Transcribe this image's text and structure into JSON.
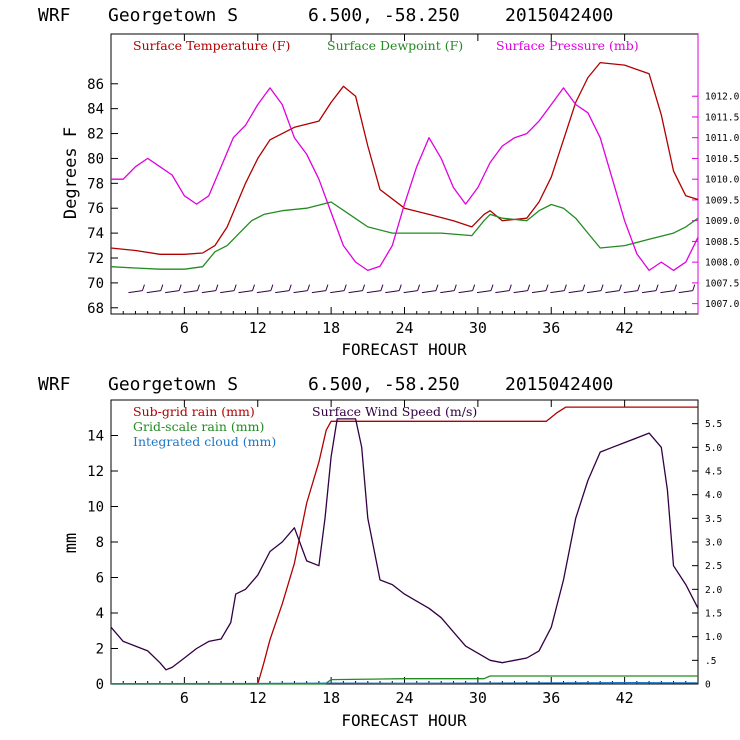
{
  "chart_data": [
    {
      "type": "line",
      "header": {
        "model": "WRF",
        "location": "Georgetown S",
        "coords": "6.500, -58.250",
        "init": "2015042400"
      },
      "xlabel": "FORECAST HOUR",
      "ylabel": "Degrees F",
      "xlim": [
        0,
        48
      ],
      "x_ticks": [
        6,
        12,
        18,
        24,
        30,
        36,
        42
      ],
      "ylim_left": [
        67.5,
        90
      ],
      "y_ticks_left": [
        68,
        70,
        72,
        74,
        76,
        78,
        80,
        82,
        84,
        86
      ],
      "ylim_right": [
        1006.75,
        1013.5
      ],
      "y_ticks_right": [
        "1007.0",
        "1007.5",
        "1008.0",
        "1008.5",
        "1009.0",
        "1009.5",
        "1010.0",
        "1010.5",
        "1011.0",
        "1011.5",
        "1012.0"
      ],
      "legend": [
        {
          "label": "Surface Temperature (F)",
          "color": "#b00000"
        },
        {
          "label": "Surface Dewpoint (F)",
          "color": "#228b22"
        },
        {
          "label": "Surface Pressure (mb)",
          "color": "#e000e0"
        }
      ],
      "series": [
        {
          "name": "Surface Temperature",
          "axis": "left",
          "color": "#b00000",
          "x": [
            0,
            2,
            4,
            6,
            7.5,
            8.5,
            9.5,
            11,
            12,
            13,
            15,
            17,
            18,
            19,
            20,
            21,
            22,
            24,
            26,
            28,
            29.5,
            30.5,
            31,
            32,
            34,
            35,
            36,
            37,
            38,
            39,
            40,
            42,
            44,
            45,
            46,
            47,
            48
          ],
          "y": [
            72.8,
            72.6,
            72.3,
            72.3,
            72.4,
            73.0,
            74.5,
            78.0,
            80.0,
            81.5,
            82.5,
            83.0,
            84.5,
            85.8,
            85.0,
            81.0,
            77.5,
            76.0,
            75.5,
            75.0,
            74.5,
            75.5,
            75.8,
            75.0,
            75.2,
            76.5,
            78.5,
            81.5,
            84.5,
            86.5,
            87.7,
            87.5,
            86.8,
            83.5,
            79.0,
            77.0,
            76.7
          ]
        },
        {
          "name": "Surface Dewpoint",
          "axis": "left",
          "color": "#228b22",
          "x": [
            0,
            2,
            4,
            6,
            7.5,
            8.5,
            9.5,
            10.5,
            11.5,
            12.5,
            14,
            16,
            18,
            19.5,
            21,
            23,
            25,
            27,
            29.5,
            30.5,
            31,
            32,
            34,
            35,
            36,
            37,
            38,
            39,
            40,
            42,
            44,
            46,
            47,
            48
          ],
          "y": [
            71.3,
            71.2,
            71.1,
            71.1,
            71.3,
            72.5,
            73.0,
            74.0,
            75.0,
            75.5,
            75.8,
            76.0,
            76.5,
            75.5,
            74.5,
            74.0,
            74.0,
            74.0,
            73.8,
            75.0,
            75.5,
            75.2,
            75.0,
            75.8,
            76.3,
            76.0,
            75.2,
            74.0,
            72.8,
            73.0,
            73.5,
            74.0,
            74.5,
            75.2
          ]
        },
        {
          "name": "Surface Pressure",
          "axis": "right",
          "color": "#e000e0",
          "x": [
            0,
            1,
            2,
            3,
            4,
            5,
            6,
            7,
            8,
            9,
            10,
            11,
            12,
            13,
            14,
            15,
            16,
            17,
            18,
            19,
            20,
            21,
            22,
            23,
            24,
            25,
            26,
            27,
            28,
            29,
            30,
            31,
            32,
            33,
            34,
            35,
            36,
            37,
            38,
            39,
            40,
            41,
            42,
            43,
            44,
            45,
            46,
            47,
            48
          ],
          "y": [
            1010.0,
            1010.0,
            1010.3,
            1010.5,
            1010.3,
            1010.1,
            1009.6,
            1009.4,
            1009.6,
            1010.3,
            1011.0,
            1011.3,
            1011.8,
            1012.2,
            1011.8,
            1011.0,
            1010.6,
            1010.0,
            1009.2,
            1008.4,
            1008.0,
            1007.8,
            1007.9,
            1008.4,
            1009.4,
            1010.3,
            1011.0,
            1010.5,
            1009.8,
            1009.4,
            1009.8,
            1010.4,
            1010.8,
            1011.0,
            1011.1,
            1011.4,
            1011.8,
            1012.2,
            1011.8,
            1011.6,
            1011.0,
            1010.0,
            1009.0,
            1008.2,
            1007.8,
            1008.0,
            1007.8,
            1008.0,
            1008.6
          ]
        }
      ],
      "wind_barbs": {
        "y": 69.3,
        "x": [
          2,
          3.5,
          5,
          6.5,
          8,
          9.5,
          11,
          12.5,
          14,
          15.5,
          17,
          18.5,
          20,
          21.5,
          23,
          24.5,
          26,
          27.5,
          29,
          30.5,
          32,
          33.5,
          35,
          36.5,
          38,
          39.5,
          41,
          42.5,
          44,
          45.5,
          47
        ]
      }
    },
    {
      "type": "line",
      "header": {
        "model": "WRF",
        "location": "Georgetown S",
        "coords": "6.500, -58.250",
        "init": "2015042400"
      },
      "xlabel": "FORECAST HOUR",
      "ylabel": "mm",
      "xlim": [
        0,
        48
      ],
      "x_ticks": [
        6,
        12,
        18,
        24,
        30,
        36,
        42
      ],
      "ylim_left": [
        0,
        16
      ],
      "y_ticks_left": [
        0,
        2,
        4,
        6,
        8,
        10,
        12,
        14
      ],
      "ylim_right": [
        0,
        6
      ],
      "y_ticks_right": [
        "0",
        ".5",
        "1.0",
        "1.5",
        "2.0",
        "2.5",
        "3.0",
        "3.5",
        "4.0",
        "4.5",
        "5.0",
        "5.5"
      ],
      "legend": [
        {
          "label": "Sub-grid rain (mm)",
          "color": "#b00000"
        },
        {
          "label": "Surface Wind Speed (m/s)",
          "color": "#330044"
        },
        {
          "label": "Grid-scale rain (mm)",
          "color": "#228b22"
        },
        {
          "label": "Integrated cloud (mm)",
          "color": "#1e78c8"
        }
      ],
      "series": [
        {
          "name": "Sub-grid rain",
          "axis": "left",
          "color": "#b00000",
          "x": [
            0,
            12,
            12.5,
            13,
            14,
            15,
            16,
            17,
            17.6,
            18,
            24,
            30,
            35.6,
            36.5,
            37.2,
            42,
            48
          ],
          "y": [
            0,
            0,
            1.2,
            2.5,
            4.5,
            6.8,
            10.2,
            12.5,
            14.3,
            14.8,
            14.8,
            14.8,
            14.8,
            15.3,
            15.6,
            15.6,
            15.6
          ]
        },
        {
          "name": "Surface Wind Speed",
          "axis": "right",
          "color": "#330044",
          "x": [
            0,
            1,
            2,
            3,
            4,
            4.5,
            5,
            6,
            7,
            8,
            9,
            9.8,
            10.2,
            11,
            12,
            13,
            14,
            15,
            16,
            17,
            17.5,
            18,
            18.5,
            19,
            20,
            20.5,
            21,
            22,
            23,
            24,
            25,
            26,
            27,
            28,
            29,
            30,
            31,
            32,
            33,
            34,
            35,
            36,
            37,
            38,
            39,
            40,
            41,
            42,
            43,
            44,
            45,
            45.5,
            46,
            47,
            48
          ],
          "y": [
            1.2,
            0.9,
            0.8,
            0.7,
            0.45,
            0.3,
            0.35,
            0.55,
            0.75,
            0.9,
            0.95,
            1.3,
            1.9,
            2.0,
            2.3,
            2.8,
            3.0,
            3.3,
            2.6,
            2.5,
            3.5,
            4.8,
            5.6,
            5.6,
            5.6,
            5.0,
            3.5,
            2.2,
            2.1,
            1.9,
            1.75,
            1.6,
            1.4,
            1.1,
            0.8,
            0.65,
            0.5,
            0.45,
            0.5,
            0.55,
            0.7,
            1.2,
            2.2,
            3.5,
            4.3,
            4.9,
            5.0,
            5.1,
            5.2,
            5.3,
            5.0,
            4.1,
            2.5,
            2.1,
            1.6
          ]
        },
        {
          "name": "Grid-scale rain",
          "axis": "left",
          "color": "#228b22",
          "x": [
            0,
            17.5,
            18,
            24,
            30.5,
            31,
            36,
            42,
            48
          ],
          "y": [
            0,
            0,
            0.25,
            0.3,
            0.3,
            0.45,
            0.45,
            0.45,
            0.45
          ]
        },
        {
          "name": "Integrated cloud",
          "axis": "left",
          "color": "#1e78c8",
          "x": [
            0,
            12,
            18,
            24,
            30,
            36,
            42,
            48
          ],
          "y": [
            0.02,
            0.03,
            0.05,
            0.04,
            0.05,
            0.06,
            0.08,
            0.06
          ]
        }
      ]
    }
  ]
}
